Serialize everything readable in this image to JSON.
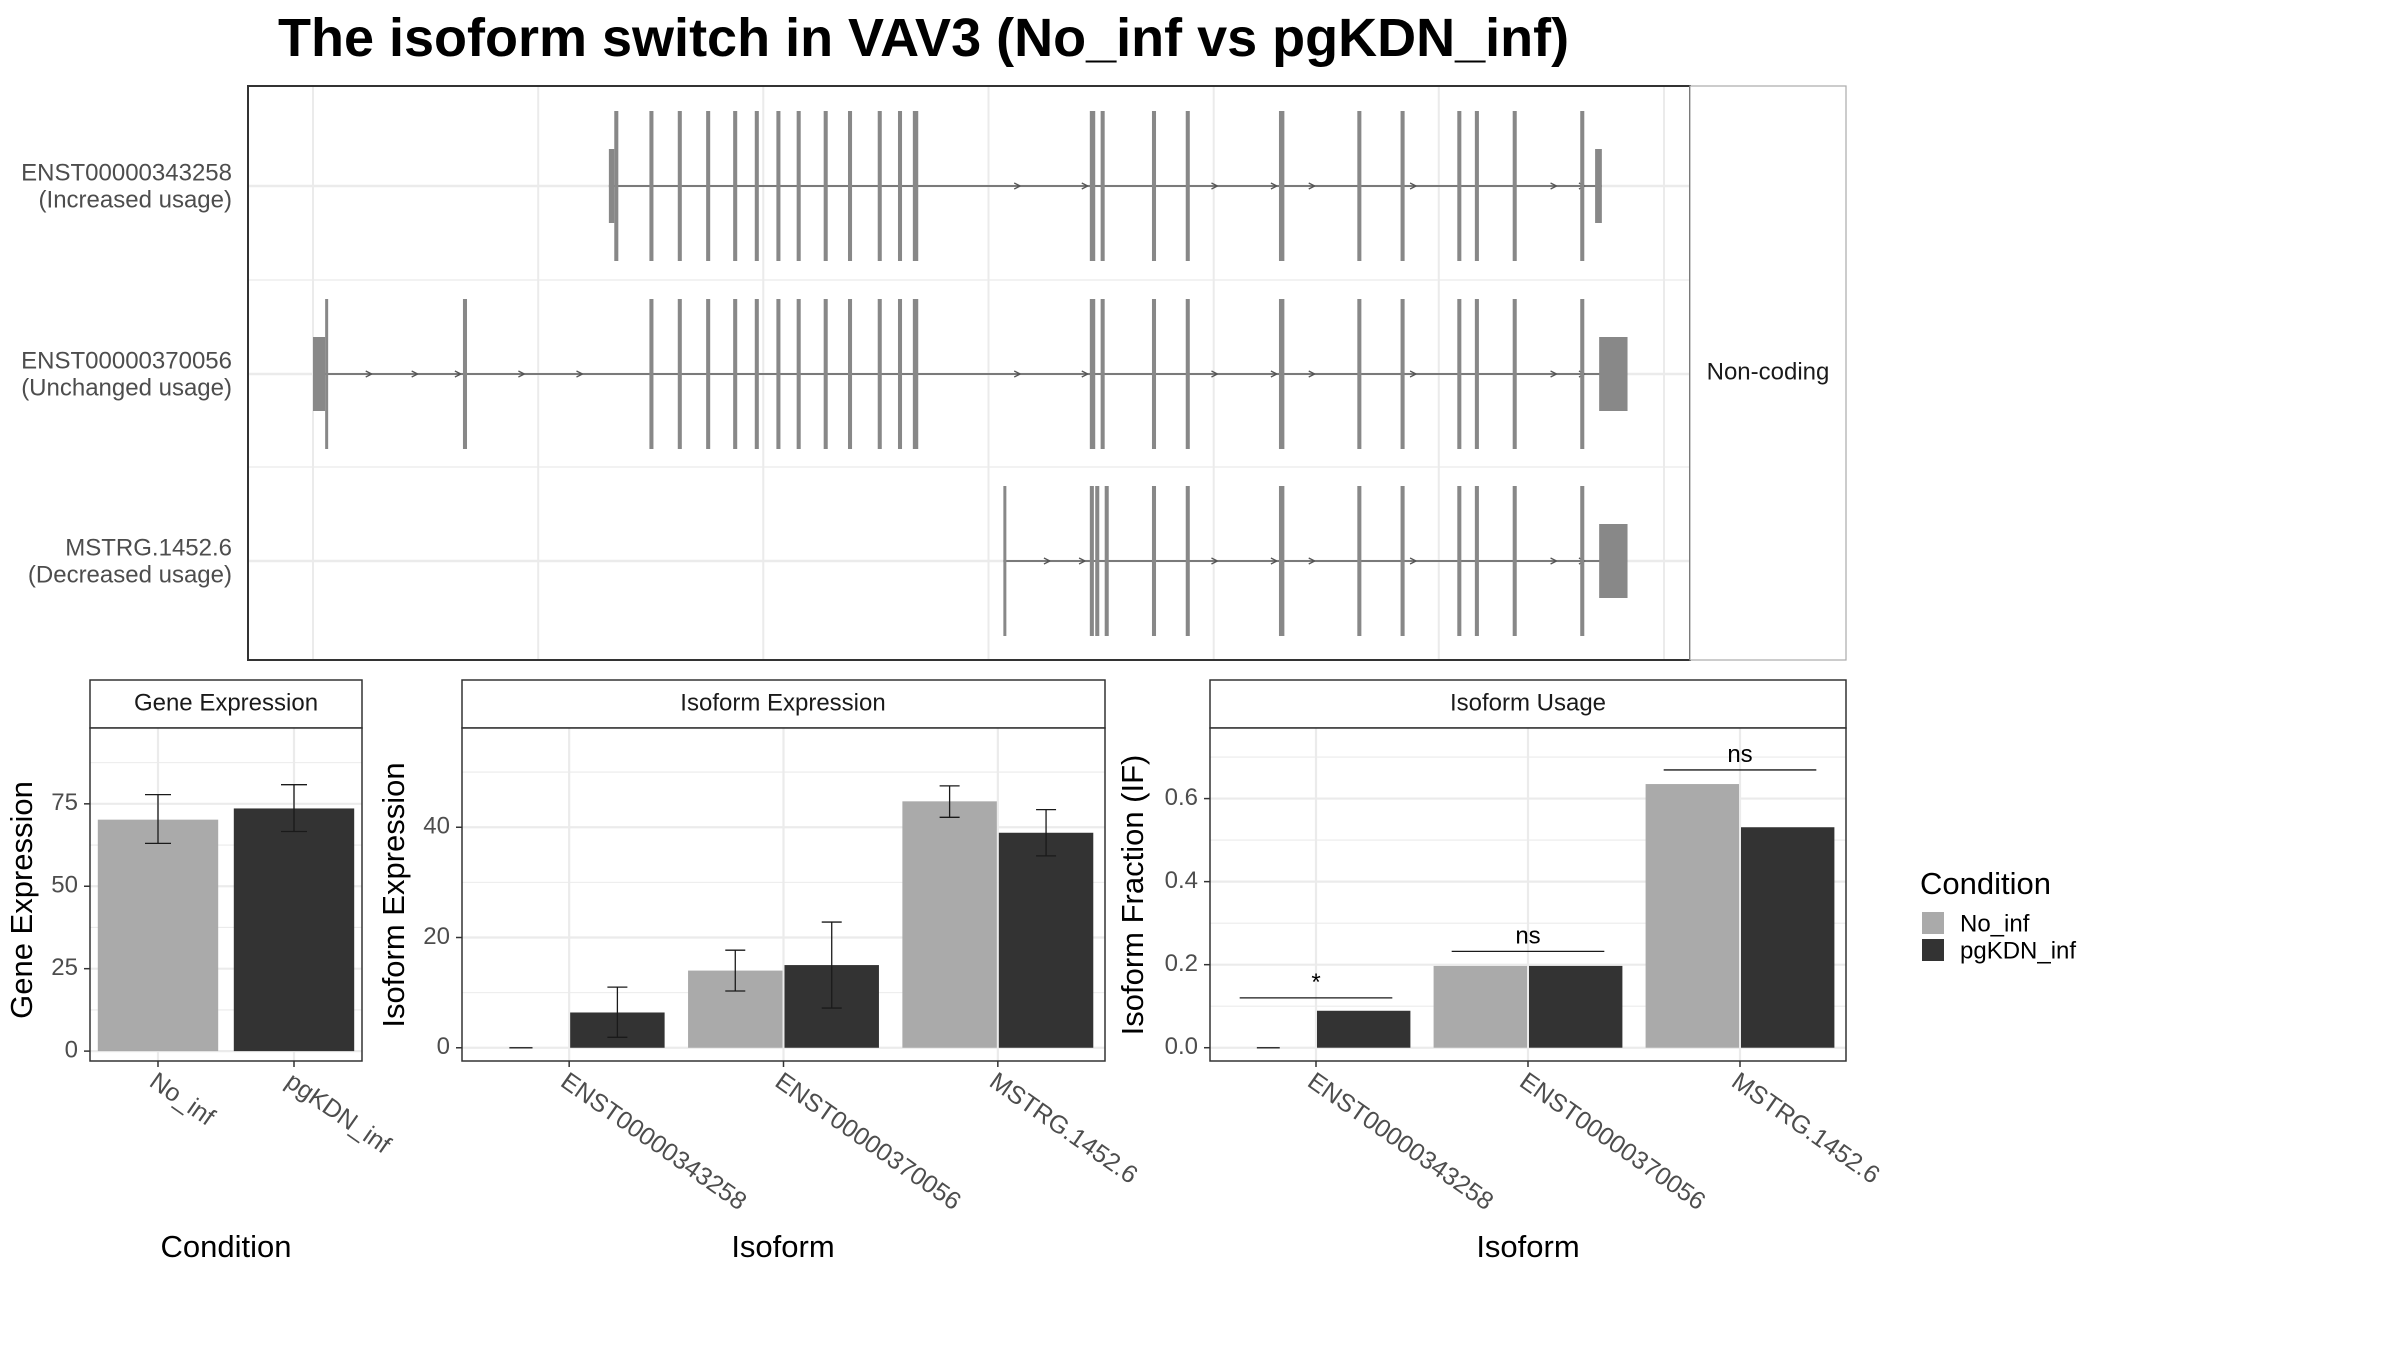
{
  "title": "The isoform switch in VAV3 (No_inf vs pgKDN_inf)",
  "colors": {
    "No_inf": "#aaaaaa",
    "pgKDN_inf": "#333333",
    "exon": "#888888",
    "intron": "#555555",
    "grid": "#ebebeb",
    "panel_border": "#333333",
    "strip_border": "#aaaaaa",
    "axis_text": "#4d4d4d"
  },
  "structure": {
    "facet_label": "Non-coding",
    "genomic_range": [
      0,
      100
    ],
    "gridlines": [
      0,
      16.67,
      33.33,
      50,
      66.67,
      83.33,
      100
    ],
    "transcripts": [
      {
        "name": "ENST00000343258",
        "usage": "(Increased usage)",
        "start": 21.9,
        "end": 95.4,
        "exons": [
          [
            21.9,
            22.3,
            "thin"
          ],
          [
            22.3,
            22.6,
            "cds"
          ],
          [
            24.9,
            25.2,
            "cds"
          ],
          [
            27.0,
            27.3,
            "cds"
          ],
          [
            29.1,
            29.4,
            "cds"
          ],
          [
            31.1,
            31.4,
            "cds"
          ],
          [
            32.7,
            33.0,
            "cds"
          ],
          [
            34.3,
            34.6,
            "cds"
          ],
          [
            35.8,
            36.1,
            "cds"
          ],
          [
            37.8,
            38.1,
            "cds"
          ],
          [
            39.6,
            39.9,
            "cds"
          ],
          [
            41.8,
            42.1,
            "cds"
          ],
          [
            43.3,
            43.6,
            "cds"
          ],
          [
            44.4,
            44.8,
            "cds"
          ],
          [
            57.5,
            57.9,
            "cds"
          ],
          [
            58.3,
            58.6,
            "cds"
          ],
          [
            62.1,
            62.4,
            "cds"
          ],
          [
            64.6,
            64.9,
            "cds"
          ],
          [
            71.5,
            71.9,
            "cds"
          ],
          [
            77.3,
            77.6,
            "cds"
          ],
          [
            80.5,
            80.8,
            "cds"
          ],
          [
            84.7,
            85.0,
            "cds"
          ],
          [
            86.0,
            86.3,
            "cds"
          ],
          [
            88.8,
            89.1,
            "cds"
          ],
          [
            93.8,
            94.1,
            "cds"
          ],
          [
            94.9,
            95.4,
            "thin"
          ]
        ],
        "arrows": [
          52.2,
          57.2,
          66.8,
          71.2,
          74.0,
          81.5,
          91.9,
          94.0
        ]
      },
      {
        "name": "ENST00000370056",
        "usage": "(Unchanged usage)",
        "start": 0.0,
        "end": 97.3,
        "exons": [
          [
            0.0,
            0.9,
            "thin"
          ],
          [
            0.9,
            1.1,
            "cds"
          ],
          [
            11.1,
            11.4,
            "cds"
          ],
          [
            24.9,
            25.2,
            "cds"
          ],
          [
            27.0,
            27.3,
            "cds"
          ],
          [
            29.1,
            29.4,
            "cds"
          ],
          [
            31.1,
            31.4,
            "cds"
          ],
          [
            32.7,
            33.0,
            "cds"
          ],
          [
            34.3,
            34.6,
            "cds"
          ],
          [
            35.8,
            36.1,
            "cds"
          ],
          [
            37.8,
            38.1,
            "cds"
          ],
          [
            39.6,
            39.9,
            "cds"
          ],
          [
            41.8,
            42.1,
            "cds"
          ],
          [
            43.3,
            43.6,
            "cds"
          ],
          [
            44.4,
            44.8,
            "cds"
          ],
          [
            57.5,
            57.9,
            "cds"
          ],
          [
            58.3,
            58.6,
            "cds"
          ],
          [
            62.1,
            62.4,
            "cds"
          ],
          [
            64.6,
            64.9,
            "cds"
          ],
          [
            71.5,
            71.9,
            "cds"
          ],
          [
            77.3,
            77.6,
            "cds"
          ],
          [
            80.5,
            80.8,
            "cds"
          ],
          [
            84.7,
            85.0,
            "cds"
          ],
          [
            86.0,
            86.3,
            "cds"
          ],
          [
            88.8,
            89.1,
            "cds"
          ],
          [
            93.8,
            94.1,
            "cds"
          ],
          [
            95.2,
            97.3,
            "thin"
          ]
        ],
        "arrows": [
          4.2,
          7.6,
          10.8,
          15.5,
          19.8,
          52.2,
          57.2,
          66.8,
          71.2,
          74.0,
          81.5,
          91.9,
          94.0
        ]
      },
      {
        "name": "MSTRG.1452.6",
        "usage": "(Decreased usage)",
        "start": 51.1,
        "end": 97.3,
        "exons": [
          [
            51.1,
            51.3,
            "cds"
          ],
          [
            57.5,
            57.8,
            "cds"
          ],
          [
            57.9,
            58.2,
            "cds"
          ],
          [
            58.6,
            58.9,
            "cds"
          ],
          [
            62.1,
            62.4,
            "cds"
          ],
          [
            64.6,
            64.9,
            "cds"
          ],
          [
            71.5,
            71.9,
            "cds"
          ],
          [
            77.3,
            77.6,
            "cds"
          ],
          [
            80.5,
            80.8,
            "cds"
          ],
          [
            84.7,
            85.0,
            "cds"
          ],
          [
            86.0,
            86.3,
            "cds"
          ],
          [
            88.8,
            89.1,
            "cds"
          ],
          [
            93.8,
            94.1,
            "cds"
          ],
          [
            95.2,
            97.3,
            "thin"
          ]
        ],
        "arrows": [
          54.4,
          57.0,
          66.8,
          71.2,
          74.0,
          81.5,
          91.9,
          94.0
        ]
      }
    ]
  },
  "chart_data": [
    {
      "type": "bar",
      "title": "Gene Expression",
      "xlabel": "Condition",
      "ylabel": "Gene Expression",
      "categories": [
        "No_inf",
        "pgKDN_inf"
      ],
      "values": [
        70.2,
        73.6
      ],
      "errors": [
        [
          63.0,
          77.8
        ],
        [
          66.6,
          80.8
        ]
      ],
      "ylim": [
        -3,
        98
      ],
      "yticks": [
        0,
        25,
        50,
        75
      ]
    },
    {
      "type": "bar",
      "title": "Isoform Expression",
      "xlabel": "Isoform",
      "ylabel": "Isoform Expression",
      "categories": [
        "ENST00000343258",
        "ENST00000370056",
        "MSTRG.1452.6"
      ],
      "series": [
        {
          "name": "No_inf",
          "values": [
            0,
            14.0,
            44.7
          ],
          "errors": [
            [
              0,
              0
            ],
            [
              10.3,
              17.7
            ],
            [
              41.8,
              47.5
            ]
          ]
        },
        {
          "name": "pgKDN_inf",
          "values": [
            6.4,
            15.0,
            39.0
          ],
          "errors": [
            [
              1.9,
              11.0
            ],
            [
              7.2,
              22.8
            ],
            [
              34.8,
              43.2
            ]
          ]
        }
      ],
      "ylim": [
        -2.4,
        58
      ],
      "yticks": [
        0,
        20,
        40
      ]
    },
    {
      "type": "bar",
      "title": "Isoform Usage",
      "xlabel": "Isoform",
      "ylabel": "Isoform Fraction (IF)",
      "categories": [
        "ENST00000343258",
        "ENST00000370056",
        "MSTRG.1452.6"
      ],
      "series": [
        {
          "name": "No_inf",
          "values": [
            0,
            0.197,
            0.635
          ]
        },
        {
          "name": "pgKDN_inf",
          "values": [
            0.089,
            0.197,
            0.531
          ]
        }
      ],
      "significance": [
        "*",
        "ns",
        "ns"
      ],
      "sig_levels": [
        0.12,
        0.232,
        0.669
      ],
      "ylim": [
        -0.032,
        0.77
      ],
      "yticks": [
        0.0,
        0.2,
        0.4,
        0.6
      ]
    }
  ],
  "legend": {
    "title": "Condition",
    "items": [
      "No_inf",
      "pgKDN_inf"
    ]
  }
}
